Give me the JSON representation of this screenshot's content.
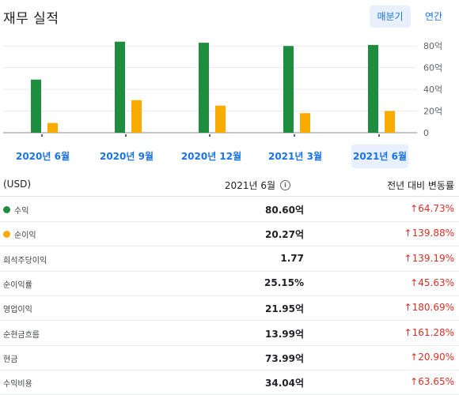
{
  "header": {
    "title": "재무 실적",
    "periods": [
      {
        "label": "매분기",
        "active": true
      },
      {
        "label": "연간",
        "active": false
      }
    ]
  },
  "chart_data": {
    "type": "bar",
    "categories": [
      "2020년 6월",
      "2020년 9월",
      "2020년 12월",
      "2021년 3월",
      "2021년 6월"
    ],
    "series": [
      {
        "name": "수익",
        "color": "#1e8e3e",
        "values": [
          49,
          84,
          83,
          80,
          81
        ]
      },
      {
        "name": "순이익",
        "color": "#f9ab00",
        "values": [
          9,
          30,
          25,
          18,
          20
        ]
      }
    ],
    "yticks": [
      "0",
      "20억",
      "40억",
      "60억",
      "80억"
    ],
    "ylim": [
      0,
      86
    ],
    "grid": true,
    "active_category": "2021년 6월"
  },
  "table": {
    "unit_header": "(USD)",
    "period_header": "2021년 6월",
    "change_header": "전년 대비 변동률",
    "rows": [
      {
        "label": "수익",
        "dot": "#1e8e3e",
        "value": "80.60억",
        "change": "64.73%"
      },
      {
        "label": "순이익",
        "dot": "#f9ab00",
        "value": "20.27억",
        "change": "139.88%"
      },
      {
        "label": "희석주당이익",
        "value": "1.77",
        "change": "139.19%"
      },
      {
        "label": "순이익률",
        "value": "25.15%",
        "change": "45.63%"
      },
      {
        "label": "영업이익",
        "value": "21.95억",
        "change": "180.69%"
      },
      {
        "label": "순현금흐름",
        "value": "13.99억",
        "change": "161.28%"
      },
      {
        "label": "현금",
        "value": "73.99억",
        "change": "20.90%"
      },
      {
        "label": "수익비용",
        "value": "34.04억",
        "change": "63.65%"
      }
    ]
  }
}
